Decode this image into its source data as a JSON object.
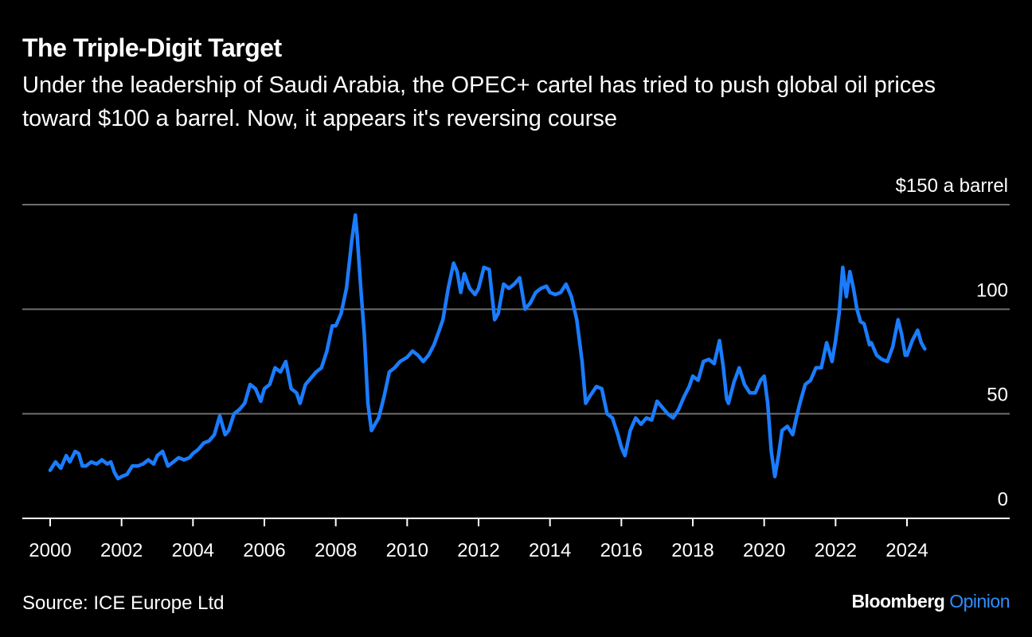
{
  "header": {
    "title": "The Triple-Digit Target",
    "subtitle": "Under the leadership of Saudi Arabia, the OPEC+ cartel has tried to push global oil prices toward $100 a barrel. Now, it appears it's reversing course"
  },
  "footer": {
    "source": "Source: ICE Europe Ltd",
    "brand_name": "Bloomberg",
    "brand_sub": "Opinion"
  },
  "colors": {
    "background": "#000000",
    "line": "#1a7cff",
    "grid": "#6e6e6e",
    "text": "#ffffff"
  },
  "chart_data": {
    "type": "line",
    "title": "The Triple-Digit Target",
    "ylabel_top": "$150 a barrel",
    "xlim": [
      2000,
      2025.4
    ],
    "ylim": [
      0,
      150
    ],
    "grid": true,
    "y_ticks": [
      {
        "value": 0,
        "label": "0"
      },
      {
        "value": 50,
        "label": "50"
      },
      {
        "value": 100,
        "label": "100"
      },
      {
        "value": 150,
        "label": "$150 a barrel"
      }
    ],
    "x_ticks": [
      {
        "value": 2000,
        "label": "2000"
      },
      {
        "value": 2002,
        "label": "2002"
      },
      {
        "value": 2004,
        "label": "2004"
      },
      {
        "value": 2006,
        "label": "2006"
      },
      {
        "value": 2008,
        "label": "2008"
      },
      {
        "value": 2010,
        "label": "2010"
      },
      {
        "value": 2012,
        "label": "2012"
      },
      {
        "value": 2014,
        "label": "2014"
      },
      {
        "value": 2016,
        "label": "2016"
      },
      {
        "value": 2018,
        "label": "2018"
      },
      {
        "value": 2020,
        "label": "2020"
      },
      {
        "value": 2022,
        "label": "2022"
      },
      {
        "value": 2024,
        "label": "2024"
      }
    ],
    "series": [
      {
        "points": [
          [
            2000.0,
            23
          ],
          [
            2000.15,
            27
          ],
          [
            2000.3,
            24
          ],
          [
            2000.45,
            30
          ],
          [
            2000.55,
            27
          ],
          [
            2000.7,
            32
          ],
          [
            2000.8,
            31
          ],
          [
            2000.9,
            25
          ],
          [
            2001.0,
            25
          ],
          [
            2001.15,
            27
          ],
          [
            2001.3,
            26
          ],
          [
            2001.45,
            28
          ],
          [
            2001.6,
            26
          ],
          [
            2001.7,
            27
          ],
          [
            2001.8,
            22
          ],
          [
            2001.9,
            19
          ],
          [
            2002.0,
            20
          ],
          [
            2002.15,
            21
          ],
          [
            2002.3,
            25
          ],
          [
            2002.45,
            25
          ],
          [
            2002.6,
            26
          ],
          [
            2002.75,
            28
          ],
          [
            2002.9,
            26
          ],
          [
            2003.0,
            30
          ],
          [
            2003.15,
            32
          ],
          [
            2003.3,
            25
          ],
          [
            2003.45,
            27
          ],
          [
            2003.6,
            29
          ],
          [
            2003.75,
            28
          ],
          [
            2003.9,
            29
          ],
          [
            2004.0,
            31
          ],
          [
            2004.15,
            33
          ],
          [
            2004.3,
            36
          ],
          [
            2004.45,
            37
          ],
          [
            2004.6,
            40
          ],
          [
            2004.75,
            49
          ],
          [
            2004.9,
            40
          ],
          [
            2005.0,
            42
          ],
          [
            2005.15,
            50
          ],
          [
            2005.3,
            52
          ],
          [
            2005.45,
            55
          ],
          [
            2005.6,
            64
          ],
          [
            2005.75,
            62
          ],
          [
            2005.9,
            56
          ],
          [
            2006.0,
            62
          ],
          [
            2006.15,
            64
          ],
          [
            2006.3,
            72
          ],
          [
            2006.45,
            70
          ],
          [
            2006.6,
            75
          ],
          [
            2006.75,
            62
          ],
          [
            2006.9,
            60
          ],
          [
            2007.0,
            55
          ],
          [
            2007.15,
            64
          ],
          [
            2007.3,
            67
          ],
          [
            2007.45,
            70
          ],
          [
            2007.6,
            72
          ],
          [
            2007.75,
            80
          ],
          [
            2007.9,
            92
          ],
          [
            2008.0,
            92
          ],
          [
            2008.15,
            98
          ],
          [
            2008.3,
            110
          ],
          [
            2008.45,
            133
          ],
          [
            2008.55,
            145
          ],
          [
            2008.6,
            135
          ],
          [
            2008.7,
            110
          ],
          [
            2008.8,
            88
          ],
          [
            2008.9,
            55
          ],
          [
            2009.0,
            42
          ],
          [
            2009.1,
            45
          ],
          [
            2009.2,
            48
          ],
          [
            2009.35,
            58
          ],
          [
            2009.5,
            70
          ],
          [
            2009.65,
            72
          ],
          [
            2009.8,
            75
          ],
          [
            2010.0,
            77
          ],
          [
            2010.15,
            80
          ],
          [
            2010.3,
            78
          ],
          [
            2010.45,
            75
          ],
          [
            2010.6,
            78
          ],
          [
            2010.75,
            83
          ],
          [
            2010.9,
            90
          ],
          [
            2011.0,
            95
          ],
          [
            2011.15,
            110
          ],
          [
            2011.3,
            122
          ],
          [
            2011.4,
            118
          ],
          [
            2011.5,
            108
          ],
          [
            2011.6,
            117
          ],
          [
            2011.75,
            110
          ],
          [
            2011.9,
            107
          ],
          [
            2012.0,
            110
          ],
          [
            2012.15,
            120
          ],
          [
            2012.3,
            119
          ],
          [
            2012.45,
            95
          ],
          [
            2012.55,
            98
          ],
          [
            2012.7,
            112
          ],
          [
            2012.85,
            110
          ],
          [
            2013.0,
            112
          ],
          [
            2013.15,
            115
          ],
          [
            2013.3,
            100
          ],
          [
            2013.45,
            103
          ],
          [
            2013.6,
            108
          ],
          [
            2013.75,
            110
          ],
          [
            2013.9,
            111
          ],
          [
            2014.0,
            108
          ],
          [
            2014.15,
            107
          ],
          [
            2014.3,
            108
          ],
          [
            2014.45,
            112
          ],
          [
            2014.6,
            106
          ],
          [
            2014.75,
            95
          ],
          [
            2014.9,
            75
          ],
          [
            2015.0,
            55
          ],
          [
            2015.1,
            58
          ],
          [
            2015.3,
            63
          ],
          [
            2015.45,
            62
          ],
          [
            2015.6,
            50
          ],
          [
            2015.75,
            48
          ],
          [
            2015.9,
            40
          ],
          [
            2016.0,
            34
          ],
          [
            2016.1,
            30
          ],
          [
            2016.25,
            42
          ],
          [
            2016.4,
            48
          ],
          [
            2016.55,
            45
          ],
          [
            2016.7,
            48
          ],
          [
            2016.85,
            47
          ],
          [
            2017.0,
            56
          ],
          [
            2017.15,
            53
          ],
          [
            2017.3,
            50
          ],
          [
            2017.45,
            48
          ],
          [
            2017.6,
            52
          ],
          [
            2017.75,
            58
          ],
          [
            2017.9,
            63
          ],
          [
            2018.0,
            68
          ],
          [
            2018.15,
            66
          ],
          [
            2018.3,
            75
          ],
          [
            2018.45,
            76
          ],
          [
            2018.6,
            74
          ],
          [
            2018.75,
            85
          ],
          [
            2018.85,
            73
          ],
          [
            2018.95,
            57
          ],
          [
            2019.0,
            55
          ],
          [
            2019.15,
            65
          ],
          [
            2019.3,
            72
          ],
          [
            2019.45,
            64
          ],
          [
            2019.6,
            60
          ],
          [
            2019.75,
            60
          ],
          [
            2019.9,
            66
          ],
          [
            2020.0,
            68
          ],
          [
            2020.1,
            55
          ],
          [
            2020.2,
            32
          ],
          [
            2020.3,
            20
          ],
          [
            2020.4,
            30
          ],
          [
            2020.5,
            42
          ],
          [
            2020.65,
            44
          ],
          [
            2020.8,
            40
          ],
          [
            2020.9,
            48
          ],
          [
            2021.0,
            55
          ],
          [
            2021.15,
            64
          ],
          [
            2021.3,
            66
          ],
          [
            2021.45,
            72
          ],
          [
            2021.6,
            72
          ],
          [
            2021.75,
            84
          ],
          [
            2021.9,
            75
          ],
          [
            2022.0,
            85
          ],
          [
            2022.1,
            98
          ],
          [
            2022.2,
            120
          ],
          [
            2022.3,
            106
          ],
          [
            2022.4,
            118
          ],
          [
            2022.5,
            110
          ],
          [
            2022.6,
            100
          ],
          [
            2022.7,
            94
          ],
          [
            2022.8,
            93
          ],
          [
            2022.95,
            83
          ],
          [
            2023.0,
            84
          ],
          [
            2023.15,
            78
          ],
          [
            2023.3,
            76
          ],
          [
            2023.45,
            75
          ],
          [
            2023.6,
            82
          ],
          [
            2023.75,
            95
          ],
          [
            2023.85,
            88
          ],
          [
            2023.95,
            78
          ],
          [
            2024.0,
            78
          ],
          [
            2024.15,
            85
          ],
          [
            2024.3,
            90
          ],
          [
            2024.4,
            84
          ],
          [
            2024.5,
            81
          ]
        ]
      }
    ]
  }
}
